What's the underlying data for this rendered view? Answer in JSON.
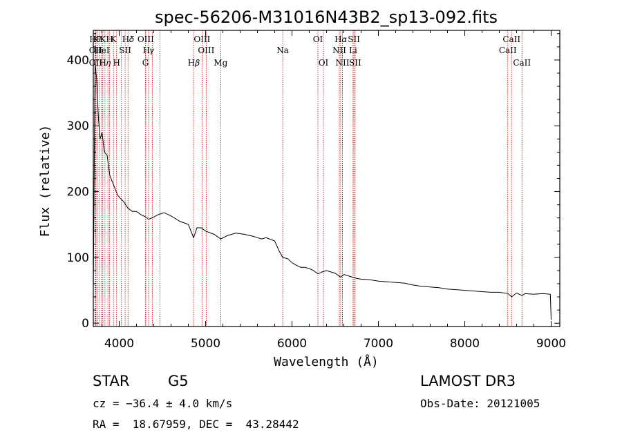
{
  "chart_data": {
    "type": "line",
    "title": "spec-56206-M31016N43B2_sp13-092.fits",
    "xlabel": "Wavelength (Å)",
    "ylabel": "Flux (relative)",
    "xlim": [
      3700,
      9100
    ],
    "ylim": [
      -5,
      445
    ],
    "x_ticks": [
      4000,
      5000,
      6000,
      7000,
      8000,
      9000
    ],
    "y_ticks": [
      0,
      100,
      200,
      300,
      400
    ],
    "grid": false,
    "series": [
      {
        "x": [
          3700,
          3720,
          3740,
          3760,
          3780,
          3800,
          3830,
          3860,
          3890,
          3920,
          3950,
          3980,
          4010,
          4050,
          4100,
          4150,
          4200,
          4250,
          4300,
          4340,
          4380,
          4450,
          4520,
          4600,
          4700,
          4800,
          4861,
          4900,
          4950,
          5000,
          5100,
          5175,
          5250,
          5350,
          5450,
          5550,
          5600,
          5650,
          5700,
          5800,
          5850,
          5893,
          5950,
          6000,
          6050,
          6100,
          6150,
          6200,
          6250,
          6300,
          6350,
          6400,
          6450,
          6500,
          6563,
          6600,
          6650,
          6700,
          6750,
          6800,
          6900,
          7000,
          7100,
          7200,
          7300,
          7400,
          7500,
          7600,
          7700,
          7800,
          7900,
          8000,
          8100,
          8200,
          8300,
          8400,
          8500,
          8542,
          8600,
          8662,
          8700,
          8800,
          8900,
          8990,
          9000
        ],
        "y": [
          50,
          395,
          370,
          310,
          280,
          290,
          260,
          255,
          225,
          215,
          205,
          195,
          190,
          185,
          175,
          170,
          170,
          165,
          162,
          158,
          160,
          165,
          168,
          163,
          155,
          150,
          130,
          145,
          145,
          140,
          135,
          128,
          133,
          137,
          135,
          132,
          130,
          128,
          130,
          125,
          110,
          100,
          98,
          92,
          88,
          85,
          85,
          83,
          80,
          75,
          78,
          80,
          78,
          76,
          70,
          74,
          72,
          70,
          68,
          67,
          66,
          64,
          63,
          62,
          61,
          58,
          56,
          55,
          54,
          52,
          51,
          50,
          49,
          48,
          47,
          47,
          45,
          40,
          46,
          42,
          45,
          44,
          45,
          44,
          5
        ]
      }
    ],
    "line_markers": {
      "top": [
        {
          "x": 3720,
          "label": "H𝜃"
        },
        {
          "x": 3732,
          "label": "Κ"
        },
        {
          "x": 3811,
          "label": "Κ"
        },
        {
          "x": 3889,
          "label": "H"
        },
        {
          "x": 3934,
          "label": "K"
        },
        {
          "x": 4102,
          "label": "H𝛿"
        },
        {
          "x": 4307,
          "label": "OIII"
        },
        {
          "x": 4959,
          "label": "OIII"
        },
        {
          "x": 6300,
          "label": "OI"
        },
        {
          "x": 6563,
          "label": "H𝛼"
        },
        {
          "x": 6717,
          "label": "SII"
        },
        {
          "x": 8542,
          "label": "CaII"
        }
      ],
      "mid": [
        {
          "x": 3727,
          "label": "OII"
        },
        {
          "x": 3800,
          "label": "HeI"
        },
        {
          "x": 4069,
          "label": "SII"
        },
        {
          "x": 4340,
          "label": "H𝛾"
        },
        {
          "x": 5007,
          "label": "OIII"
        },
        {
          "x": 5893,
          "label": "Na"
        },
        {
          "x": 6548,
          "label": "NII"
        },
        {
          "x": 6707,
          "label": "Li"
        },
        {
          "x": 8498,
          "label": "CaII"
        }
      ],
      "bot": [
        {
          "x": 3727,
          "label": "OII"
        },
        {
          "x": 3835,
          "label": "H𝜂"
        },
        {
          "x": 3970,
          "label": "H"
        },
        {
          "x": 4304,
          "label": "G"
        },
        {
          "x": 4861,
          "label": "H𝛽"
        },
        {
          "x": 5175,
          "label": "Mg"
        },
        {
          "x": 6364,
          "label": "OI"
        },
        {
          "x": 6584,
          "label": "NII"
        },
        {
          "x": 6731,
          "label": "SII"
        },
        {
          "x": 8662,
          "label": "CaII"
        }
      ],
      "extra_lines_x": [
        3750,
        3771,
        3798,
        3869,
        4026,
        4384,
        4471,
        6583
      ]
    }
  },
  "info": {
    "object_class": "STAR",
    "subclass": "G5",
    "survey": "LAMOST DR3",
    "cz": "cz = −36.4 ± 4.0 km/s",
    "obs_date": "Obs-Date: 20121005",
    "coords": "RA =  18.67959, DEC =  43.28442"
  },
  "colors": {
    "spectrum": "#000000",
    "marker_lines": "#cc0000",
    "axes": "#000000"
  }
}
